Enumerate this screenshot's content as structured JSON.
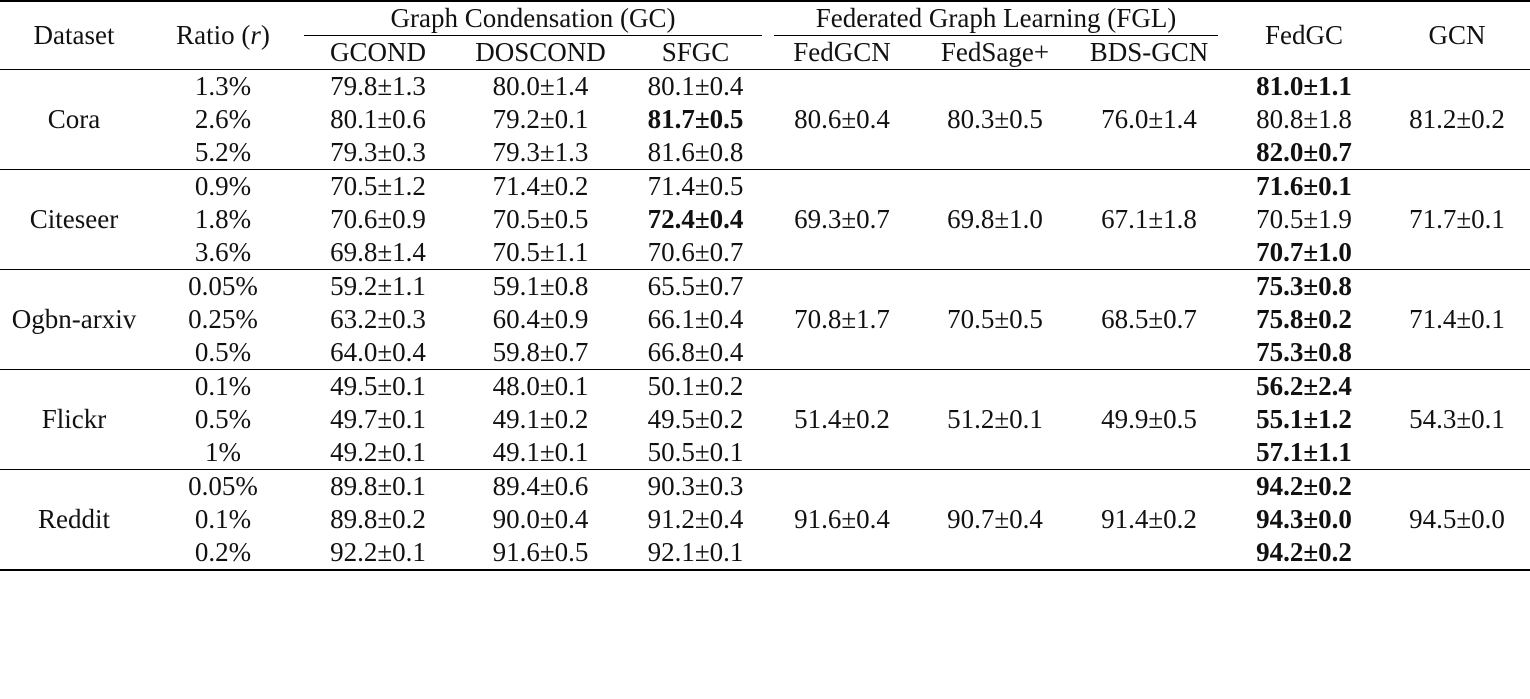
{
  "table": {
    "headers": {
      "dataset": "Dataset",
      "ratio": "Ratio (r)",
      "gc_group": "Graph Condensation (GC)",
      "fgl_group": "Federated Graph Learning (FGL)",
      "gcond": "GCOND",
      "doscond": "DOSCOND",
      "sfgc": "SFGC",
      "fedgcn": "FedGCN",
      "fedsage": "FedSage+",
      "bdsgcn": "BDS-GCN",
      "fedgc": "FedGC",
      "gcn": "GCN"
    },
    "rows": [
      {
        "dataset": "Cora",
        "ratios": [
          "1.3%",
          "2.6%",
          "5.2%"
        ],
        "gcond": [
          "79.8±1.3",
          "80.1±0.6",
          "79.3±0.3"
        ],
        "doscond": [
          "80.0±1.4",
          "79.2±0.1",
          "79.3±1.3"
        ],
        "sfgc": [
          "80.1±0.4",
          "81.7±0.5",
          "81.6±0.8"
        ],
        "fedgcn": "80.6±0.4",
        "fedsage": "80.3±0.5",
        "bdsgcn": "76.0±1.4",
        "fedgc": [
          "81.0±1.1",
          "80.8±1.8",
          "82.0±0.7"
        ],
        "gcn": "81.2±0.2"
      },
      {
        "dataset": "Citeseer",
        "ratios": [
          "0.9%",
          "1.8%",
          "3.6%"
        ],
        "gcond": [
          "70.5±1.2",
          "70.6±0.9",
          "69.8±1.4"
        ],
        "doscond": [
          "71.4±0.2",
          "70.5±0.5",
          "70.5±1.1"
        ],
        "sfgc": [
          "71.4±0.5",
          "72.4±0.4",
          "70.6±0.7"
        ],
        "fedgcn": "69.3±0.7",
        "fedsage": "69.8±1.0",
        "bdsgcn": "67.1±1.8",
        "fedgc": [
          "71.6±0.1",
          "70.5±1.9",
          "70.7±1.0"
        ],
        "gcn": "71.7±0.1"
      },
      {
        "dataset": "Ogbn-arxiv",
        "ratios": [
          "0.05%",
          "0.25%",
          "0.5%"
        ],
        "gcond": [
          "59.2±1.1",
          "63.2±0.3",
          "64.0±0.4"
        ],
        "doscond": [
          "59.1±0.8",
          "60.4±0.9",
          "59.8±0.7"
        ],
        "sfgc": [
          "65.5±0.7",
          "66.1±0.4",
          "66.8±0.4"
        ],
        "fedgcn": "70.8±1.7",
        "fedsage": "70.5±0.5",
        "bdsgcn": "68.5±0.7",
        "fedgc": [
          "75.3±0.8",
          "75.8±0.2",
          "75.3±0.8"
        ],
        "gcn": "71.4±0.1"
      },
      {
        "dataset": "Flickr",
        "ratios": [
          "0.1%",
          "0.5%",
          "1%"
        ],
        "gcond": [
          "49.5±0.1",
          "49.7±0.1",
          "49.2±0.1"
        ],
        "doscond": [
          "48.0±0.1",
          "49.1±0.2",
          "49.1±0.1"
        ],
        "sfgc": [
          "50.1±0.2",
          "49.5±0.2",
          "50.5±0.1"
        ],
        "fedgcn": "51.4±0.2",
        "fedsage": "51.2±0.1",
        "bdsgcn": "49.9±0.5",
        "fedgc": [
          "56.2±2.4",
          "55.1±1.2",
          "57.1±1.1"
        ],
        "gcn": "54.3±0.1"
      },
      {
        "dataset": "Reddit",
        "ratios": [
          "0.05%",
          "0.1%",
          "0.2%"
        ],
        "gcond": [
          "89.8±0.1",
          "89.8±0.2",
          "92.2±0.1"
        ],
        "doscond": [
          "89.4±0.6",
          "90.0±0.4",
          "91.6±0.5"
        ],
        "sfgc": [
          "90.3±0.3",
          "91.2±0.4",
          "92.1±0.1"
        ],
        "fedgcn": "91.6±0.4",
        "fedsage": "90.7±0.4",
        "bdsgcn": "91.4±0.2",
        "fedgc": [
          "94.2±0.2",
          "94.3±0.0",
          "94.2±0.2"
        ],
        "gcn": "94.5±0.0"
      }
    ]
  }
}
